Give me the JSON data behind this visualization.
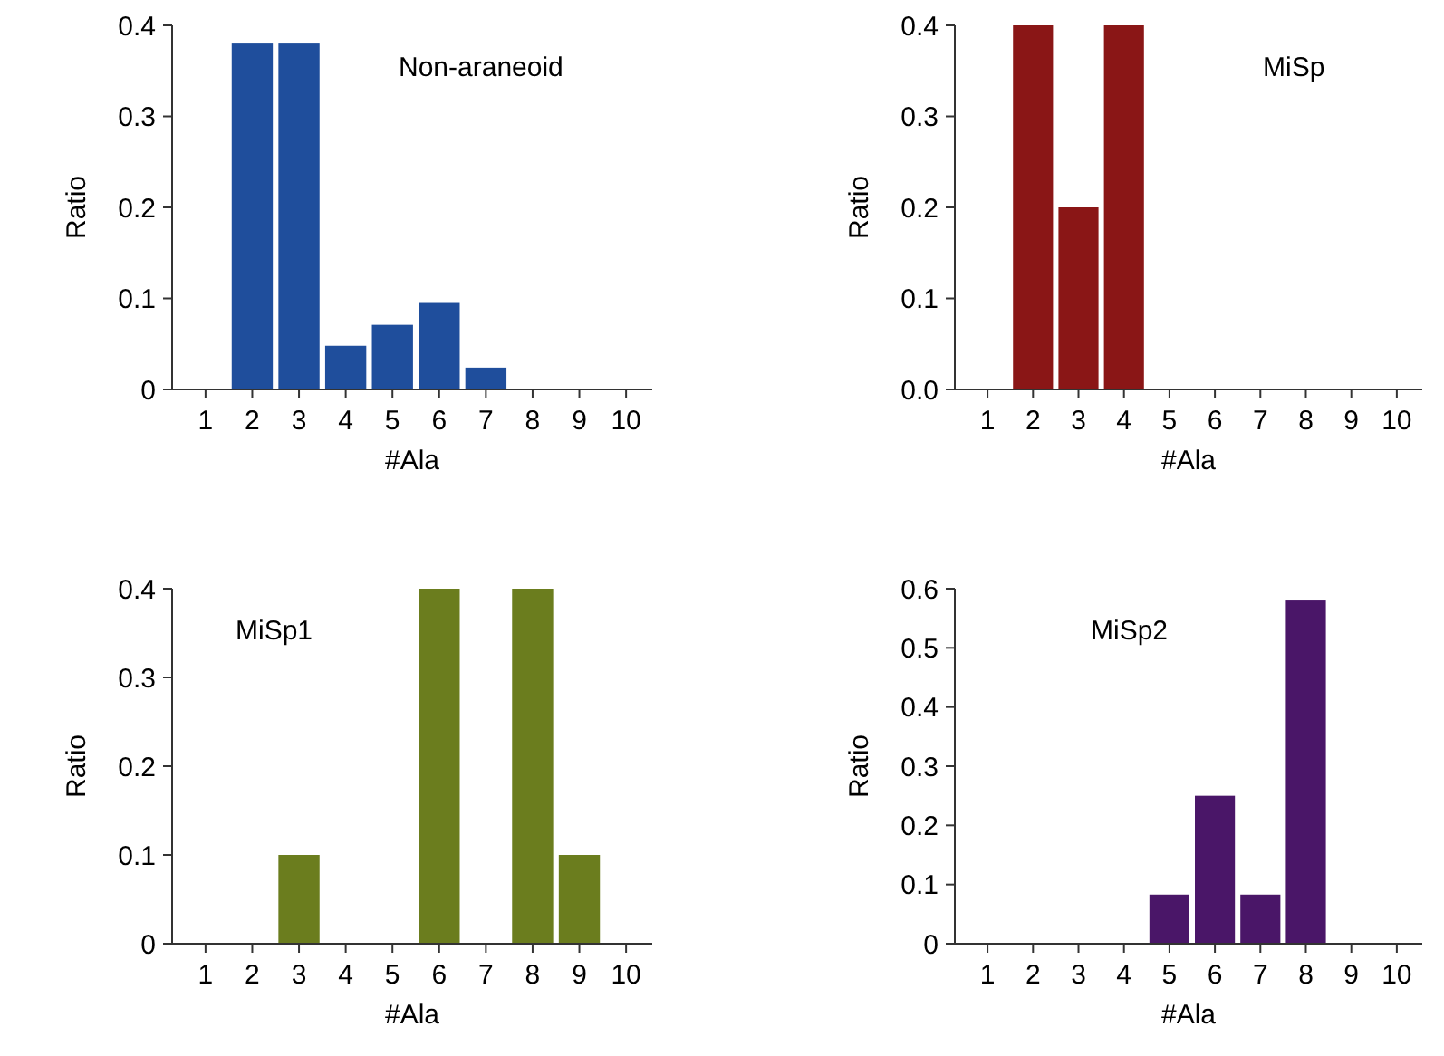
{
  "chart_data": [
    {
      "type": "bar",
      "title": "Non-araneoid",
      "xlabel": "#Ala",
      "ylabel": "Ratio",
      "categories": [
        "1",
        "2",
        "3",
        "4",
        "5",
        "6",
        "7",
        "8",
        "9",
        "10"
      ],
      "values": [
        0,
        0.38,
        0.38,
        0.048,
        0.071,
        0.095,
        0.024,
        0,
        0,
        0
      ],
      "color": "#1f4e9c",
      "ylim": [
        0,
        0.4
      ],
      "yticks": [
        0,
        0.1,
        0.2,
        0.3,
        0.4
      ],
      "grid": false
    },
    {
      "type": "bar",
      "title": "MiSp",
      "xlabel": "#Ala",
      "ylabel": "Ratio",
      "categories": [
        "1",
        "2",
        "3",
        "4",
        "5",
        "6",
        "7",
        "8",
        "9",
        "10"
      ],
      "values": [
        0,
        0.4,
        0.2,
        0.4,
        0,
        0,
        0,
        0,
        0,
        0
      ],
      "color": "#8a1616",
      "ylim": [
        0,
        0.4
      ],
      "yticks": [
        {
          "value": 0,
          "label": "0.0"
        },
        0.1,
        0.2,
        0.3,
        0.4
      ],
      "grid": false
    },
    {
      "type": "bar",
      "title": "MiSp1",
      "xlabel": "#Ala",
      "ylabel": "Ratio",
      "categories": [
        "1",
        "2",
        "3",
        "4",
        "5",
        "6",
        "7",
        "8",
        "9",
        "10"
      ],
      "values": [
        0,
        0,
        0.1,
        0,
        0,
        0.4,
        0,
        0.4,
        0.1,
        0
      ],
      "color": "#6b7d1e",
      "ylim": [
        0,
        0.4
      ],
      "yticks": [
        0,
        0.1,
        0.2,
        0.3,
        0.4
      ],
      "grid": false
    },
    {
      "type": "bar",
      "title": "MiSp2",
      "xlabel": "#Ala",
      "ylabel": "Ratio",
      "categories": [
        "1",
        "2",
        "3",
        "4",
        "5",
        "6",
        "7",
        "8",
        "9",
        "10"
      ],
      "values": [
        0,
        0,
        0,
        0,
        0.083,
        0.25,
        0.083,
        0.58,
        0,
        0
      ],
      "color": "#4a1668",
      "ylim": [
        0,
        0.6
      ],
      "yticks": [
        0,
        0.1,
        0.2,
        0.3,
        0.4,
        0.5,
        0.6
      ],
      "grid": false
    }
  ]
}
